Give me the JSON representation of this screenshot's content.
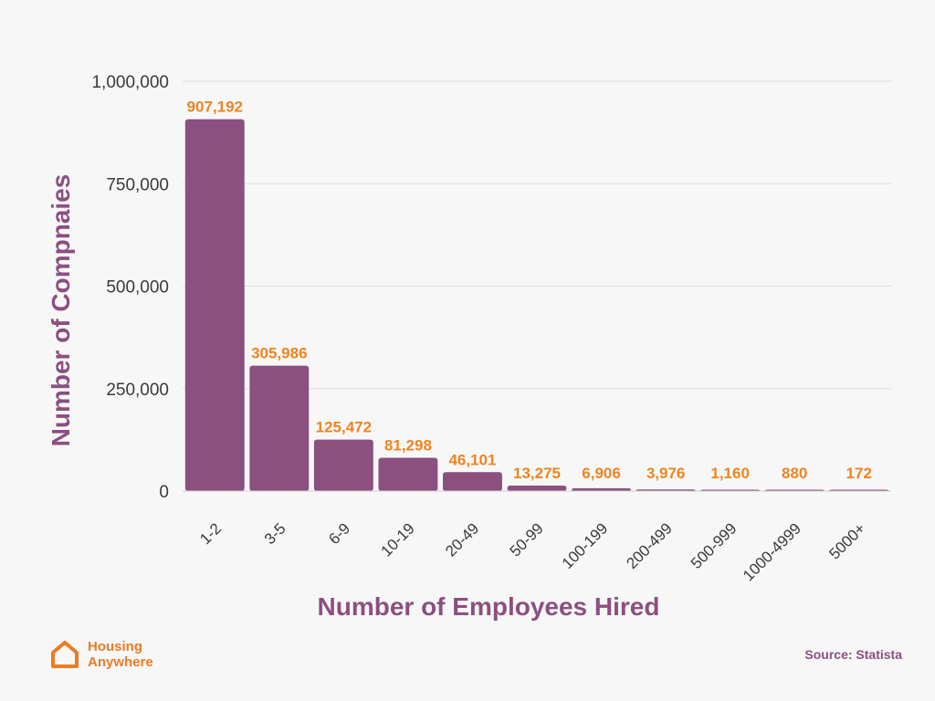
{
  "chart_data": {
    "type": "bar",
    "title": "",
    "xlabel": "Number of Employees Hired",
    "ylabel": "Number of Compnaies",
    "categories": [
      "1-2",
      "3-5",
      "6-9",
      "10-19",
      "20-49",
      "50-99",
      "100-199",
      "200-499",
      "500-999",
      "1000-4999",
      "5000+"
    ],
    "values": [
      907192,
      305986,
      125472,
      81298,
      46101,
      13275,
      6906,
      3976,
      1160,
      880,
      172
    ],
    "value_labels": [
      "907,192",
      "305,986",
      "125,472",
      "81,298",
      "46,101",
      "13,275",
      "6,906",
      "3,976",
      "1,160",
      "880",
      "172"
    ],
    "ylim": [
      0,
      1000000
    ],
    "yticks": [
      0,
      250000,
      500000,
      750000,
      1000000
    ],
    "ytick_labels": [
      "0",
      "250,000",
      "500,000",
      "750,000",
      "1,000,000"
    ],
    "grid": true,
    "colors": {
      "bar": "#8b4f80",
      "value_label": "#ee8420",
      "axis_title": "#8b4f80",
      "grid": "#dcdcdc"
    }
  },
  "branding": {
    "logo_line1": "Housing",
    "logo_line2": "Anywhere",
    "logo_color": "#ee7a22"
  },
  "source": "Source: Statista"
}
